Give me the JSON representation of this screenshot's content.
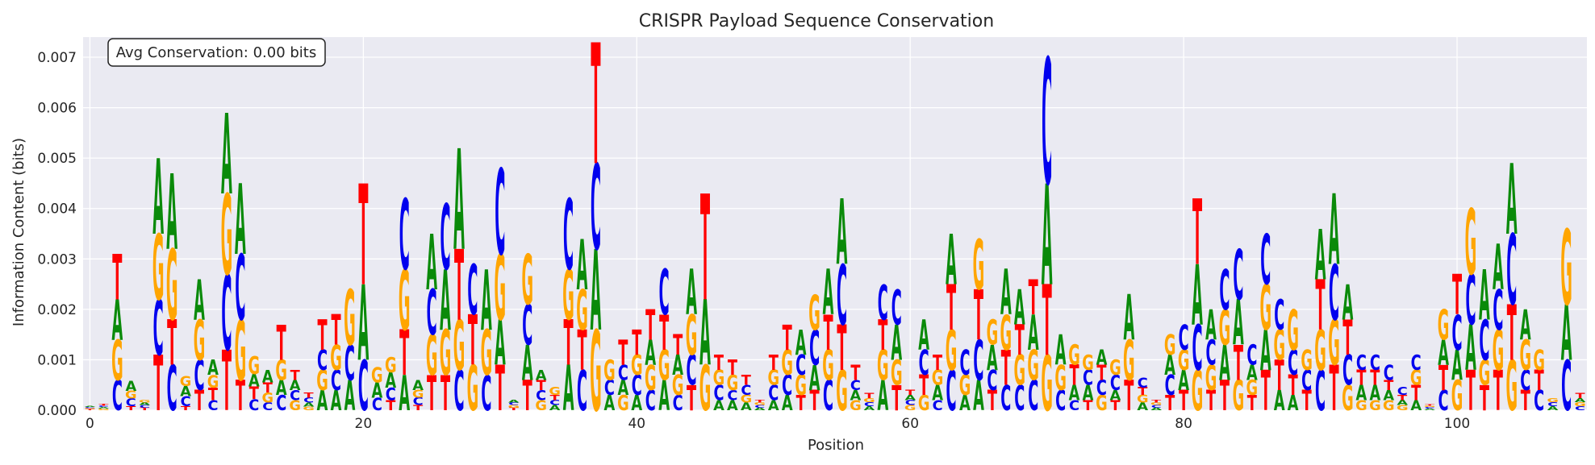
{
  "chart_data": {
    "type": "sequence-logo",
    "title": "CRISPR Payload Sequence Conservation",
    "xlabel": "Position",
    "ylabel": "Information Content (bits)",
    "xlim": [
      -0.5,
      109.5
    ],
    "ylim": [
      0,
      0.0074
    ],
    "xticks": [
      0,
      20,
      40,
      60,
      80,
      100
    ],
    "yticks": [
      0.0,
      0.001,
      0.002,
      0.003,
      0.004,
      0.005,
      0.006,
      0.007
    ],
    "ytick_labels": [
      "0.000",
      "0.001",
      "0.002",
      "0.003",
      "0.004",
      "0.005",
      "0.006",
      "0.007"
    ],
    "grid": true,
    "annotation": "Avg Conservation: 0.00 bits",
    "annotation_position": "top-left",
    "colors": {
      "A": "#0a8a0a",
      "C": "#0000ee",
      "G": "#ffa500",
      "T": "#ff0000"
    },
    "background_color": "#eaeaf2",
    "positions": [
      {
        "x": 0,
        "stack": {
          "T": 2e-05,
          "G": 2e-05,
          "C": 2e-05,
          "A": 2e-05
        }
      },
      {
        "x": 1,
        "stack": {
          "G": 3e-05,
          "A": 3e-05,
          "C": 3e-05,
          "T": 4e-05
        }
      },
      {
        "x": 2,
        "stack": {
          "C": 0.0006,
          "G": 0.0008,
          "A": 0.0008,
          "T": 0.0009
        }
      },
      {
        "x": 3,
        "stack": {
          "T": 8e-05,
          "C": 0.00015,
          "G": 0.00015,
          "A": 0.0002
        }
      },
      {
        "x": 4,
        "stack": {
          "T": 5e-05,
          "C": 5e-05,
          "A": 5e-05,
          "G": 5e-05
        }
      },
      {
        "x": 5,
        "stack": {
          "T": 0.0011,
          "C": 0.0011,
          "G": 0.0013,
          "A": 0.0015
        }
      },
      {
        "x": 6,
        "stack": {
          "C": 0.0009,
          "A": 0.0015,
          "T": 0.0009,
          "G": 0.0014
        }
      },
      {
        "x": 7,
        "stack": {
          "T": 8e-05,
          "C": 0.0002,
          "A": 0.0002,
          "G": 0.0002
        }
      },
      {
        "x": 8,
        "stack": {
          "T": 0.0004,
          "C": 0.0006,
          "G": 0.0008,
          "A": 0.0008
        }
      },
      {
        "x": 9,
        "stack": {
          "C": 0.0002,
          "A": 0.0003,
          "T": 0.00025,
          "G": 0.00025
        }
      },
      {
        "x": 10,
        "stack": {
          "T": 0.0012,
          "C": 0.0015,
          "G": 0.0016,
          "A": 0.0016
        }
      },
      {
        "x": 11,
        "stack": {
          "G": 0.0012,
          "A": 0.0014,
          "C": 0.0013,
          "T": 0.0006
        }
      },
      {
        "x": 12,
        "stack": {
          "C": 0.00022,
          "T": 0.00025,
          "G": 0.00035,
          "A": 0.00025
        }
      },
      {
        "x": 13,
        "stack": {
          "C": 0.00015,
          "G": 0.0002,
          "A": 0.00025,
          "T": 0.0002
        }
      },
      {
        "x": 14,
        "stack": {
          "C": 0.0003,
          "A": 0.0003,
          "G": 0.0004,
          "T": 0.0007
        }
      },
      {
        "x": 15,
        "stack": {
          "G": 0.0002,
          "C": 0.0002,
          "A": 0.0002,
          "T": 0.0002
        }
      },
      {
        "x": 16,
        "stack": {
          "C": 0.0001,
          "G": 7e-05,
          "A": 8e-05,
          "T": 0.0001
        }
      },
      {
        "x": 17,
        "stack": {
          "A": 0.0004,
          "G": 0.0004,
          "C": 0.0004,
          "T": 0.0006
        }
      },
      {
        "x": 18,
        "stack": {
          "A": 0.0004,
          "C": 0.0004,
          "T": 0.0006,
          "G": 0.0005
        }
      },
      {
        "x": 19,
        "stack": {
          "G": 0.0011,
          "C": 0.0007,
          "A": 0.0006
        }
      },
      {
        "x": 20,
        "stack": {
          "T": 0.002,
          "C": 0.001,
          "A": 0.0015
        }
      },
      {
        "x": 21,
        "stack": {
          "A": 0.0003,
          "G": 0.0003,
          "C": 0.00025
        }
      },
      {
        "x": 22,
        "stack": {
          "T": 0.0002,
          "A": 0.0003,
          "G": 0.0003,
          "C": 0.00025
        }
      },
      {
        "x": 23,
        "stack": {
          "A": 0.0007,
          "C": 0.0014,
          "G": 0.0012,
          "T": 0.0009
        }
      },
      {
        "x": 24,
        "stack": {
          "T": 0.0001,
          "A": 0.0002,
          "C": 0.00015,
          "G": 0.00015
        }
      },
      {
        "x": 25,
        "stack": {
          "T": 0.0007,
          "A": 0.0011,
          "G": 0.0008,
          "C": 0.0009
        }
      },
      {
        "x": 26,
        "stack": {
          "C": 0.0013,
          "G": 0.0009,
          "T": 0.0007,
          "A": 0.0012
        }
      },
      {
        "x": 27,
        "stack": {
          "G": 0.001,
          "C": 0.0008,
          "A": 0.002,
          "T": 0.0014
        }
      },
      {
        "x": 28,
        "stack": {
          "G": 0.0009,
          "T": 0.001,
          "C": 0.001
        }
      },
      {
        "x": 29,
        "stack": {
          "G": 0.0009,
          "C": 0.0007,
          "A": 0.0012
        }
      },
      {
        "x": 30,
        "stack": {
          "T": 0.0009,
          "C": 0.0017,
          "G": 0.0013,
          "A": 0.0009
        }
      },
      {
        "x": 31,
        "stack": {
          "T": 5e-05,
          "G": 5e-05,
          "C": 5e-05,
          "A": 5e-05
        }
      },
      {
        "x": 32,
        "stack": {
          "C": 0.0008,
          "A": 0.0007,
          "G": 0.001,
          "T": 0.0006
        }
      },
      {
        "x": 33,
        "stack": {
          "G": 0.0002,
          "C": 0.0002,
          "T": 0.0002,
          "A": 0.0002
        }
      },
      {
        "x": 34,
        "stack": {
          "A": 0.0001,
          "C": 0.0001,
          "G": 0.00015,
          "T": 0.0001
        }
      },
      {
        "x": 35,
        "stack": {
          "A": 0.0009,
          "C": 0.0014,
          "T": 0.0009,
          "G": 0.001
        }
      },
      {
        "x": 36,
        "stack": {
          "C": 0.0008,
          "T": 0.0008,
          "A": 0.001,
          "G": 0.0008
        }
      },
      {
        "x": 37,
        "stack": {
          "G": 0.0016,
          "A": 0.0016,
          "C": 0.0017,
          "T": 0.0024
        }
      },
      {
        "x": 38,
        "stack": {
          "G": 0.0004,
          "A": 0.0003,
          "C": 0.0003
        }
      },
      {
        "x": 39,
        "stack": {
          "G": 0.0003,
          "T": 0.0005,
          "A": 0.0003,
          "C": 0.0003
        }
      },
      {
        "x": 40,
        "stack": {
          "C": 0.0004,
          "T": 0.0005,
          "A": 0.0003,
          "G": 0.0004
        }
      },
      {
        "x": 41,
        "stack": {
          "T": 0.0006,
          "G": 0.0005,
          "C": 0.0004,
          "A": 0.0005
        }
      },
      {
        "x": 42,
        "stack": {
          "T": 0.0007,
          "A": 0.0006,
          "G": 0.0006,
          "C": 0.0009
        }
      },
      {
        "x": 43,
        "stack": {
          "G": 0.0004,
          "A": 0.0004,
          "C": 0.0003,
          "T": 0.0004
        }
      },
      {
        "x": 44,
        "stack": {
          "A": 0.0009,
          "C": 0.0006,
          "T": 0.0005,
          "G": 0.0008
        }
      },
      {
        "x": 45,
        "stack": {
          "G": 0.0009,
          "T": 0.0021,
          "A": 0.0013
        }
      },
      {
        "x": 46,
        "stack": {
          "A": 0.0002,
          "C": 0.0003,
          "G": 0.0003,
          "T": 0.0003
        }
      },
      {
        "x": 47,
        "stack": {
          "A": 0.0002,
          "C": 0.0002,
          "G": 0.0003,
          "T": 0.0003
        }
      },
      {
        "x": 48,
        "stack": {
          "A": 0.00015,
          "G": 0.00015,
          "C": 0.0002,
          "T": 0.0002
        }
      },
      {
        "x": 49,
        "stack": {
          "A": 5e-05,
          "C": 5e-05,
          "G": 5e-05,
          "T": 5e-05
        }
      },
      {
        "x": 50,
        "stack": {
          "A": 0.0002,
          "C": 0.0003,
          "G": 0.0003,
          "T": 0.0003
        }
      },
      {
        "x": 51,
        "stack": {
          "A": 0.0003,
          "G": 0.0005,
          "C": 0.0004,
          "T": 0.0005
        }
      },
      {
        "x": 52,
        "stack": {
          "A": 0.0005,
          "G": 0.0004,
          "C": 0.0004,
          "T": 0.0003
        }
      },
      {
        "x": 53,
        "stack": {
          "T": 0.0004,
          "A": 0.0005,
          "C": 0.0007,
          "G": 0.0007
        }
      },
      {
        "x": 54,
        "stack": {
          "C": 0.0006,
          "G": 0.0006,
          "T": 0.0007,
          "A": 0.0009
        }
      },
      {
        "x": 55,
        "stack": {
          "G": 0.0008,
          "T": 0.0009,
          "C": 0.0012,
          "A": 0.0013
        }
      },
      {
        "x": 56,
        "stack": {
          "G": 0.0002,
          "A": 0.0002,
          "C": 0.0002,
          "T": 0.0003
        }
      },
      {
        "x": 57,
        "stack": {
          "A": 8e-05,
          "C": 8e-05,
          "G": 8e-05,
          "T": 0.0001
        }
      },
      {
        "x": 58,
        "stack": {
          "A": 0.0006,
          "C": 0.0007,
          "G": 0.0006,
          "T": 0.0006
        }
      },
      {
        "x": 59,
        "stack": {
          "T": 0.0005,
          "G": 0.0005,
          "A": 0.0007,
          "C": 0.0007
        }
      },
      {
        "x": 60,
        "stack": {
          "G": 0.0001,
          "C": 0.0001,
          "A": 0.0001,
          "T": 0.0001
        }
      },
      {
        "x": 61,
        "stack": {
          "G": 0.0003,
          "T": 0.0004,
          "A": 0.0006,
          "C": 0.0005
        }
      },
      {
        "x": 62,
        "stack": {
          "C": 0.0002,
          "A": 0.0003,
          "G": 0.0003,
          "T": 0.0003
        }
      },
      {
        "x": 63,
        "stack": {
          "C": 0.0008,
          "G": 0.0008,
          "T": 0.0009,
          "A": 0.001
        }
      },
      {
        "x": 64,
        "stack": {
          "C": 0.0005,
          "G": 0.0004,
          "A": 0.0003
        }
      },
      {
        "x": 65,
        "stack": {
          "A": 0.0006,
          "T": 0.001,
          "C": 0.0008,
          "G": 0.001
        }
      },
      {
        "x": 66,
        "stack": {
          "A": 0.0005,
          "G": 0.0005,
          "T": 0.0004,
          "C": 0.0004
        }
      },
      {
        "x": 67,
        "stack": {
          "C": 0.0005,
          "T": 0.0007,
          "G": 0.0007,
          "A": 0.0009
        }
      },
      {
        "x": 68,
        "stack": {
          "C": 0.0005,
          "G": 0.0006,
          "T": 0.0006,
          "A": 0.0007
        }
      },
      {
        "x": 69,
        "stack": {
          "C": 0.0006,
          "A": 0.0007,
          "G": 0.0006,
          "T": 0.0007
        }
      },
      {
        "x": 70,
        "stack": {
          "T": 0.0014,
          "G": 0.0011,
          "A": 0.002,
          "C": 0.0025
        }
      },
      {
        "x": 71,
        "stack": {
          "G": 0.0005,
          "C": 0.0004,
          "A": 0.0006
        }
      },
      {
        "x": 72,
        "stack": {
          "T": 0.0004,
          "G": 0.0004,
          "C": 0.0002,
          "A": 0.0003
        }
      },
      {
        "x": 73,
        "stack": {
          "A": 0.0003,
          "C": 0.0003,
          "G": 0.0003,
          "T": 0.0002
        }
      },
      {
        "x": 74,
        "stack": {
          "G": 0.0003,
          "C": 0.0003,
          "T": 0.0003,
          "A": 0.0003
        }
      },
      {
        "x": 75,
        "stack": {
          "C": 0.0003,
          "T": 0.0002,
          "A": 0.0002,
          "G": 0.0003
        }
      },
      {
        "x": 76,
        "stack": {
          "T": 0.0006,
          "A": 0.0009,
          "G": 0.0008
        }
      },
      {
        "x": 77,
        "stack": {
          "C": 0.0002,
          "A": 0.00015,
          "G": 0.00015,
          "T": 0.00015
        }
      },
      {
        "x": 78,
        "stack": {
          "A": 5e-05,
          "C": 5e-05,
          "G": 5e-05,
          "T": 5e-05
        }
      },
      {
        "x": 79,
        "stack": {
          "C": 0.0004,
          "A": 0.0004,
          "G": 0.0004,
          "T": 0.0003
        }
      },
      {
        "x": 80,
        "stack": {
          "T": 0.0004,
          "C": 0.0005,
          "A": 0.0004,
          "G": 0.0004
        }
      },
      {
        "x": 81,
        "stack": {
          "C": 0.0009,
          "T": 0.0013,
          "G": 0.0008,
          "A": 0.0012
        }
      },
      {
        "x": 82,
        "stack": {
          "G": 0.0005,
          "C": 0.0005,
          "A": 0.0006,
          "T": 0.0004
        }
      },
      {
        "x": 83,
        "stack": {
          "C": 0.0008,
          "A": 0.0007,
          "T": 0.0006,
          "G": 0.0007
        }
      },
      {
        "x": 84,
        "stack": {
          "T": 0.0007,
          "G": 0.0006,
          "A": 0.0009,
          "C": 0.001
        }
      },
      {
        "x": 85,
        "stack": {
          "C": 0.0004,
          "T": 0.0003,
          "G": 0.0003,
          "A": 0.0003
        }
      },
      {
        "x": 86,
        "stack": {
          "T": 0.0008,
          "G": 0.0009,
          "A": 0.0008,
          "C": 0.001
        }
      },
      {
        "x": 87,
        "stack": {
          "A": 0.0004,
          "T": 0.0006,
          "G": 0.0006,
          "C": 0.0006
        }
      },
      {
        "x": 88,
        "stack": {
          "A": 0.0003,
          "T": 0.0004,
          "C": 0.0005,
          "G": 0.0008
        }
      },
      {
        "x": 89,
        "stack": {
          "T": 0.0004,
          "C": 0.0004,
          "G": 0.0004
        }
      },
      {
        "x": 90,
        "stack": {
          "C": 0.0008,
          "T": 0.001,
          "G": 0.0008,
          "A": 0.001
        }
      },
      {
        "x": 91,
        "stack": {
          "T": 0.0009,
          "G": 0.0009,
          "C": 0.0011,
          "A": 0.0014
        }
      },
      {
        "x": 92,
        "stack": {
          "C": 0.0006,
          "G": 0.0005,
          "T": 0.0007,
          "A": 0.0007
        }
      },
      {
        "x": 93,
        "stack": {
          "G": 0.0002,
          "A": 0.0003,
          "T": 0.0003,
          "C": 0.0003
        }
      },
      {
        "x": 94,
        "stack": {
          "G": 0.0002,
          "A": 0.0003,
          "T": 0.0003,
          "C": 0.0003
        }
      },
      {
        "x": 95,
        "stack": {
          "G": 0.0002,
          "A": 0.0002,
          "C": 0.0003,
          "T": 0.0002
        }
      },
      {
        "x": 96,
        "stack": {
          "C": 0.00015,
          "G": 0.0001,
          "A": 0.0001,
          "T": 0.0001
        }
      },
      {
        "x": 97,
        "stack": {
          "T": 0.0003,
          "A": 0.0002,
          "G": 0.0003,
          "C": 0.0003
        }
      },
      {
        "x": 98,
        "stack": {
          "A": 3e-05,
          "C": 3e-05,
          "G": 3e-05,
          "T": 3e-05
        }
      },
      {
        "x": 99,
        "stack": {
          "C": 0.0004,
          "T": 0.0005,
          "G": 0.0006,
          "A": 0.0005
        }
      },
      {
        "x": 100,
        "stack": {
          "T": 0.0008,
          "G": 0.0006,
          "A": 0.0006,
          "C": 0.0007
        }
      },
      {
        "x": 101,
        "stack": {
          "T": 0.0008,
          "A": 0.0009,
          "C": 0.001,
          "G": 0.0013
        }
      },
      {
        "x": 102,
        "stack": {
          "T": 0.0005,
          "G": 0.0005,
          "A": 0.001,
          "C": 0.0008
        }
      },
      {
        "x": 103,
        "stack": {
          "T": 0.0008,
          "G": 0.0008,
          "A": 0.0009,
          "C": 0.0008
        }
      },
      {
        "x": 104,
        "stack": {
          "T": 0.0011,
          "G": 0.001,
          "C": 0.0014,
          "A": 0.0014
        }
      },
      {
        "x": 105,
        "stack": {
          "T": 0.0004,
          "C": 0.0004,
          "G": 0.0006,
          "A": 0.0006
        }
      },
      {
        "x": 106,
        "stack": {
          "C": 0.0004,
          "T": 0.0004,
          "G": 0.0004
        }
      },
      {
        "x": 107,
        "stack": {
          "A": 8e-05,
          "C": 8e-05,
          "G": 8e-05
        }
      },
      {
        "x": 108,
        "stack": {
          "C": 0.001,
          "A": 0.0011,
          "G": 0.0015,
          "A2": 0
        }
      },
      {
        "x": 109,
        "stack": {
          "T": 0.0001,
          "C": 8e-05,
          "G": 8e-05,
          "A": 8e-05
        }
      }
    ]
  }
}
